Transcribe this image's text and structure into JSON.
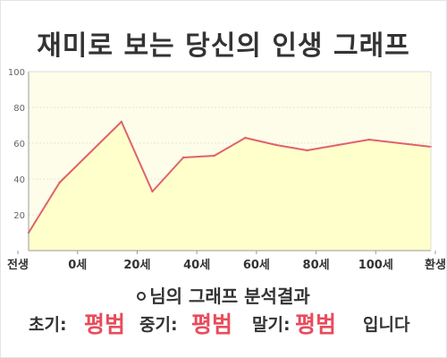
{
  "title": "재미로 보는 당신의 인생 그래프",
  "chart_data": {
    "type": "area",
    "x_categories": [
      "전생",
      "0세",
      "20세",
      "40세",
      "60세",
      "80세",
      "100세",
      "환생"
    ],
    "x": [
      -10,
      0,
      20,
      30,
      40,
      50,
      60,
      70,
      80,
      90,
      100,
      120
    ],
    "values": [
      10,
      38,
      72,
      33,
      52,
      53,
      63,
      59,
      56,
      59,
      62,
      58
    ],
    "y_ticks": [
      20,
      40,
      60,
      80,
      100
    ],
    "ylim": [
      0,
      100
    ],
    "grid": true,
    "fill_color": "#ffffcc",
    "line_color": "#e0626a"
  },
  "result": {
    "label": "님의 그래프 분석결과"
  },
  "summary": {
    "early_label": "초기:",
    "early_value": "평범",
    "mid_label": "중기:",
    "mid_value": "평범",
    "late_label": "말기:",
    "late_value": "평범",
    "ending": "입니다"
  }
}
